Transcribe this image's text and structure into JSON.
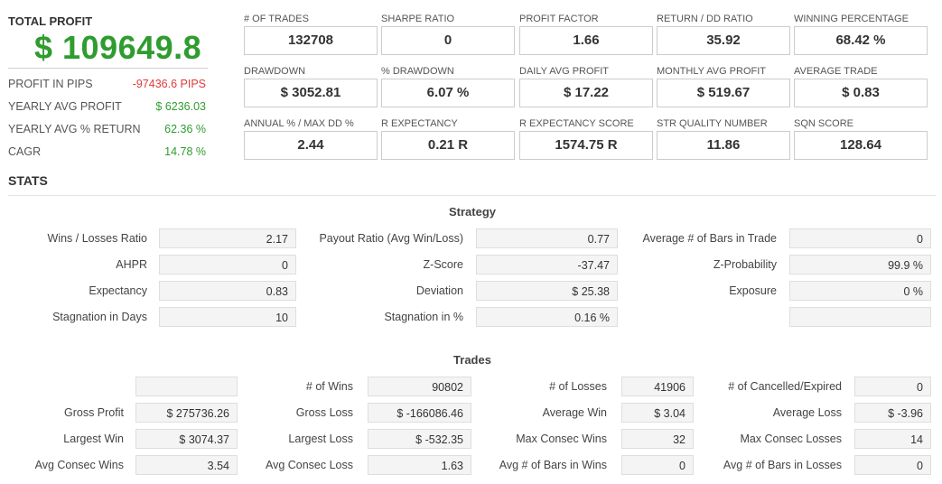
{
  "summary": {
    "total_profit_label": "TOTAL PROFIT",
    "total_profit_value": "$ 109649.8",
    "rows": [
      {
        "label": "PROFIT IN PIPS",
        "value": "-97436.6 PIPS"
      },
      {
        "label": "YEARLY AVG PROFIT",
        "value": "$ 6236.03"
      },
      {
        "label": "YEARLY AVG % RETURN",
        "value": "62.36 %"
      },
      {
        "label": "CAGR",
        "value": "14.78 %"
      }
    ]
  },
  "metrics": [
    {
      "label": "# OF TRADES",
      "value": "132708"
    },
    {
      "label": "SHARPE RATIO",
      "value": "0"
    },
    {
      "label": "PROFIT FACTOR",
      "value": "1.66"
    },
    {
      "label": "RETURN / DD RATIO",
      "value": "35.92"
    },
    {
      "label": "WINNING PERCENTAGE",
      "value": "68.42 %"
    },
    {
      "label": "DRAWDOWN",
      "value": "$ 3052.81"
    },
    {
      "label": "% DRAWDOWN",
      "value": "6.07 %"
    },
    {
      "label": "DAILY AVG PROFIT",
      "value": "$ 17.22"
    },
    {
      "label": "MONTHLY AVG PROFIT",
      "value": "$ 519.67"
    },
    {
      "label": "AVERAGE TRADE",
      "value": "$ 0.83"
    },
    {
      "label": "ANNUAL % / MAX DD %",
      "value": "2.44"
    },
    {
      "label": "R EXPECTANCY",
      "value": "0.21 R"
    },
    {
      "label": "R EXPECTANCY SCORE",
      "value": "1574.75 R"
    },
    {
      "label": "STR QUALITY NUMBER",
      "value": "11.86"
    },
    {
      "label": "SQN SCORE",
      "value": "128.64"
    }
  ],
  "stats_title": "STATS",
  "strategy": {
    "title": "Strategy",
    "rows": [
      [
        {
          "label": "Wins / Losses Ratio",
          "value": "2.17"
        },
        {
          "label": "Payout Ratio (Avg Win/Loss)",
          "value": "0.77"
        },
        {
          "label": "Average # of Bars in Trade",
          "value": "0"
        }
      ],
      [
        {
          "label": "AHPR",
          "value": "0"
        },
        {
          "label": "Z-Score",
          "value": "-37.47"
        },
        {
          "label": "Z-Probability",
          "value": "99.9 %"
        }
      ],
      [
        {
          "label": "Expectancy",
          "value": "0.83"
        },
        {
          "label": "Deviation",
          "value": "$ 25.38"
        },
        {
          "label": "Exposure",
          "value": "0 %"
        }
      ],
      [
        {
          "label": "Stagnation in Days",
          "value": "10"
        },
        {
          "label": "Stagnation in %",
          "value": "0.16 %"
        },
        {
          "label": "",
          "value": ""
        }
      ]
    ]
  },
  "trades": {
    "title": "Trades",
    "rows": [
      [
        {
          "label": "",
          "value": ""
        },
        {
          "label": "# of Wins",
          "value": "90802"
        },
        {
          "label": "# of Losses",
          "value": "41906"
        },
        {
          "label": "# of Cancelled/Expired",
          "value": "0"
        }
      ],
      [
        {
          "label": "Gross Profit",
          "value": "$ 275736.26"
        },
        {
          "label": "Gross Loss",
          "value": "$ -166086.46"
        },
        {
          "label": "Average Win",
          "value": "$ 3.04"
        },
        {
          "label": "Average Loss",
          "value": "$ -3.96"
        }
      ],
      [
        {
          "label": "Largest Win",
          "value": "$ 3074.37"
        },
        {
          "label": "Largest Loss",
          "value": "$ -532.35"
        },
        {
          "label": "Max Consec Wins",
          "value": "32"
        },
        {
          "label": "Max Consec Losses",
          "value": "14"
        }
      ],
      [
        {
          "label": "Avg Consec Wins",
          "value": "3.54"
        },
        {
          "label": "Avg Consec Loss",
          "value": "1.63"
        },
        {
          "label": "Avg # of Bars in Wins",
          "value": "0"
        },
        {
          "label": "Avg # of Bars in Losses",
          "value": "0"
        }
      ]
    ]
  },
  "colors": {
    "profit_green": "#2f9c2f",
    "loss_red": "#e03a3a"
  }
}
